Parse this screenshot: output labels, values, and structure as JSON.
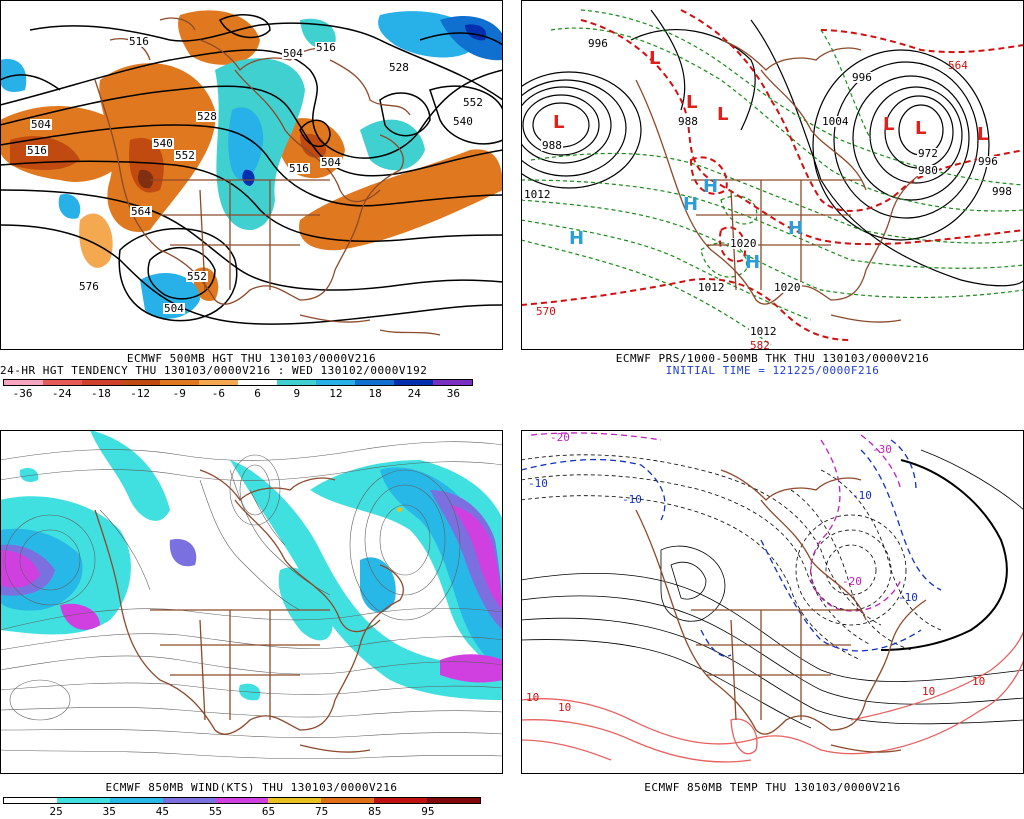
{
  "panel_top_left": {
    "caption_line1": "ECMWF 500MB HGT THU 130103/0000V216",
    "caption_line2": "24-HR HGT TENDENCY THU 130103/0000V216 : WED 130102/0000V192",
    "contour_labels": [
      "516",
      "504",
      "516",
      "528",
      "540",
      "552",
      "564",
      "576",
      "552",
      "504",
      "504",
      "516",
      "528",
      "552",
      "540",
      "504",
      "516"
    ],
    "legend_labels": [
      "-36",
      "-24",
      "-18",
      "-12",
      "-9",
      "-6",
      "6",
      "9",
      "12",
      "18",
      "24",
      "36"
    ],
    "legend_colors": [
      "#f6a5c0",
      "#e85a5a",
      "#d0402a",
      "#c04a10",
      "#e07820",
      "#f4a850",
      "#ffffff",
      "#40d0d0",
      "#28b0e8",
      "#1070d0",
      "#0030b0",
      "#7a30c0"
    ]
  },
  "panel_top_right": {
    "caption_line1": "ECMWF PRS/1000-500MB THK THU 130103/0000V216",
    "caption_line2": "INITIAL TIME = 121225/0000F216",
    "pressure_labels": [
      "996",
      "988",
      "1012",
      "1020",
      "1012",
      "1012",
      "1020",
      "988",
      "980",
      "996",
      "998",
      "1004",
      "996",
      "972"
    ],
    "thickness_labels": [
      "570",
      "564",
      "582"
    ],
    "low_symbol": "L",
    "high_symbol": "H"
  },
  "panel_bottom_left": {
    "caption": "ECMWF 850MB WIND(KTS) THU 130103/0000V216",
    "legend_labels": [
      "25",
      "35",
      "45",
      "55",
      "65",
      "75",
      "85",
      "95"
    ],
    "legend_colors": [
      "#ffffff",
      "#40e0e0",
      "#28b8e8",
      "#7a70e0",
      "#d040e0",
      "#e8c020",
      "#e07018",
      "#c01010",
      "#800808"
    ]
  },
  "panel_bottom_right": {
    "caption": "ECMWF 850MB TEMP THU 130103/0000V216",
    "temp_labels_blue": [
      "-10",
      "-10",
      "-10",
      "-10"
    ],
    "temp_labels_mag": [
      "-20",
      "-20",
      "-30"
    ],
    "temp_labels_red": [
      "10",
      "10",
      "10",
      "10"
    ]
  },
  "colors": {
    "coastline": "#8b4a2b",
    "height_contour": "#000000",
    "thickness_line": "#d01010",
    "pressure_line": "#1a8a1a"
  }
}
